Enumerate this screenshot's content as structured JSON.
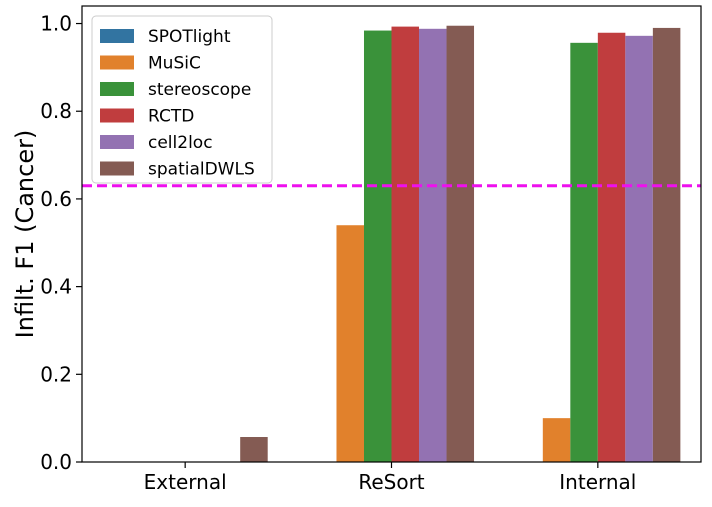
{
  "chart_data": {
    "type": "bar",
    "categories": [
      "External",
      "ReSort",
      "Internal"
    ],
    "series": [
      {
        "name": "SPOTlight",
        "color": "#3274a1",
        "values": [
          0.0,
          0.0,
          0.0
        ]
      },
      {
        "name": "MuSiC",
        "color": "#e1812c",
        "values": [
          0.0,
          0.54,
          0.1
        ]
      },
      {
        "name": "stereoscope",
        "color": "#3a923a",
        "values": [
          0.0,
          0.984,
          0.956
        ]
      },
      {
        "name": "RCTD",
        "color": "#c03d3e",
        "values": [
          0.0,
          0.993,
          0.979
        ]
      },
      {
        "name": "cell2loc",
        "color": "#9372b2",
        "values": [
          0.0,
          0.988,
          0.972
        ]
      },
      {
        "name": "spatialDWLS",
        "color": "#845b53",
        "values": [
          0.057,
          0.995,
          0.99
        ]
      }
    ],
    "ylabel": "Infilt. F1 (Cancer)",
    "xlabel": "",
    "ylim": [
      0,
      1.04
    ],
    "yticks": [
      0.0,
      0.2,
      0.4,
      0.6,
      0.8,
      1.0
    ],
    "ytick_labels": [
      "0.0",
      "0.2",
      "0.4",
      "0.6",
      "0.8",
      "1.0"
    ],
    "reference_line": {
      "y": 0.63,
      "color": "#ee10ee",
      "style": "dashed"
    },
    "legend_position": "top-left",
    "grid": false
  }
}
